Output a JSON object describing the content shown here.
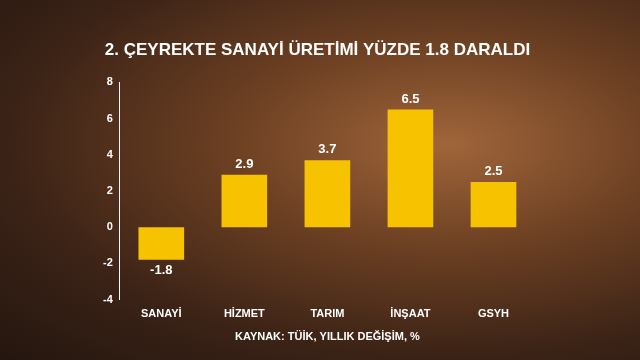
{
  "chart_data": {
    "type": "bar",
    "title": "2. ÇEYREKTE SANAYİ ÜRETİMİ YÜZDE 1.8 DARALDI",
    "x_label": "KAYNAK: TÜİK, YILLIK DEĞİŞİM, %",
    "categories": [
      "SANAYİ",
      "HİZMET",
      "TARIM",
      "İNŞAAT",
      "GSYH"
    ],
    "values": [
      -1.8,
      2.9,
      3.7,
      6.5,
      2.5
    ],
    "color": "#f7c300",
    "ylim": [
      -4,
      8
    ],
    "yticks": [
      -4,
      -2,
      0,
      2,
      4,
      6,
      8
    ],
    "grid": false,
    "data_labels": true
  }
}
